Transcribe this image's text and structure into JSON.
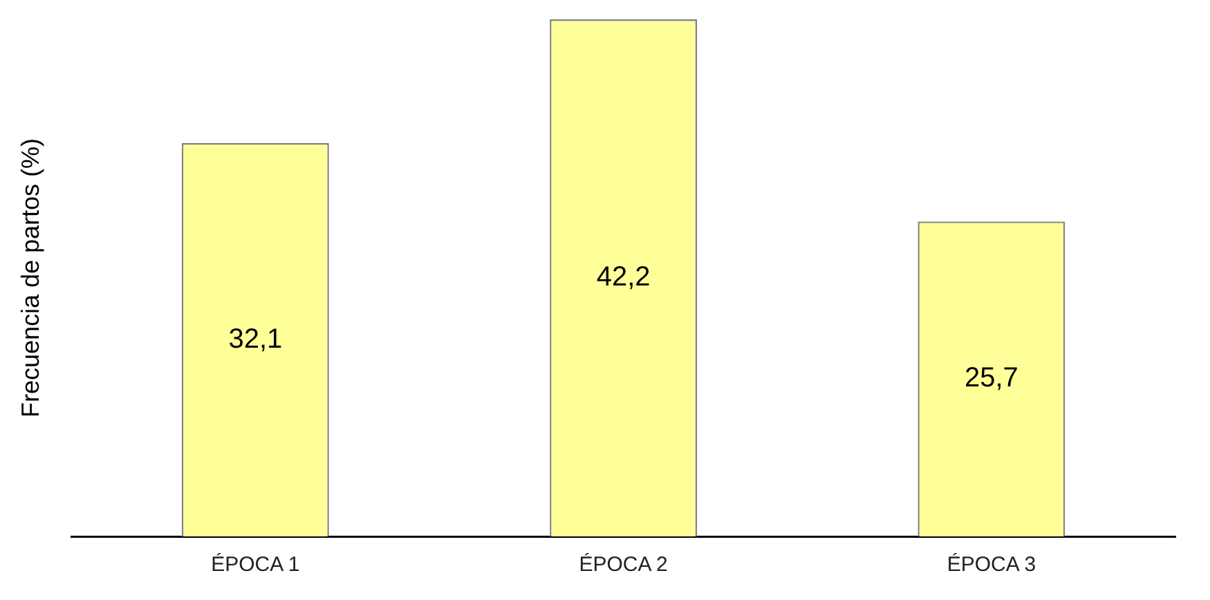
{
  "chart_data": {
    "type": "bar",
    "ylabel": "Frecuencia de partos (%)",
    "categories": [
      "ÉPOCA 1",
      "ÉPOCA 2",
      "ÉPOCA 3"
    ],
    "values": [
      32.1,
      42.2,
      25.7
    ],
    "value_labels": [
      "32,1",
      "42,2",
      "25,7"
    ],
    "color": "#ffff99",
    "tick_labels": "x",
    "grid": false,
    "legend": false
  }
}
